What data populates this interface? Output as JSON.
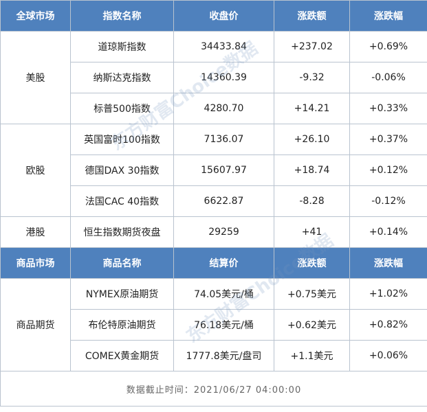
{
  "header1": [
    "全球市场",
    "指数名称",
    "收盘价",
    "涨跌额",
    "涨跌幅"
  ],
  "groups": [
    {
      "name": "美股",
      "rows": [
        [
          "道琼斯指数",
          "34433.84",
          "+237.02",
          "+0.69%"
        ],
        [
          "纳斯达克指数",
          "14360.39",
          "-9.32",
          "-0.06%"
        ],
        [
          "标普500指数",
          "4280.70",
          "+14.21",
          "+0.33%"
        ]
      ]
    },
    {
      "name": "欧股",
      "rows": [
        [
          "英国富时100指数",
          "7136.07",
          "+26.10",
          "+0.37%"
        ],
        [
          "德国DAX 30指数",
          "15607.97",
          "+18.74",
          "+0.12%"
        ],
        [
          "法国CAC 40指数",
          "6622.87",
          "-8.28",
          "-0.12%"
        ]
      ]
    },
    {
      "name": "港股",
      "rows": [
        [
          "恒生指数期货夜盘",
          "29259",
          "+41",
          "+0.14%"
        ]
      ]
    }
  ],
  "header2": [
    "商品市场",
    "商品名称",
    "结算价",
    "涨跌额",
    "涨跌幅"
  ],
  "commodity_group": {
    "name": "商品期货",
    "rows": [
      [
        "NYMEX原油期货",
        "74.05美元/桶",
        "+0.75美元",
        "+1.02%"
      ],
      [
        "布伦特原油期货",
        "76.18美元/桶",
        "+0.62美元",
        "+0.82%"
      ],
      [
        "COMEX黄金期货",
        "1777.8美元/盘司",
        "+1.1美元",
        "+0.06%"
      ]
    ]
  },
  "footer": "数据截止时间：2021/06/27 04:00:00",
  "watermark": "东方财富Choice数据",
  "colors": {
    "header_bg": "#4f81bd",
    "border": "#b9c3cf"
  }
}
